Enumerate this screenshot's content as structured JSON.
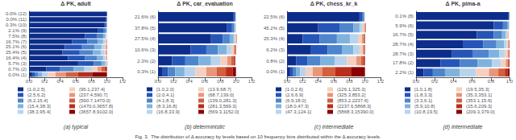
{
  "chart_data": [
    {
      "type": "bar",
      "orientation": "horizontal",
      "stacked": true,
      "title": "Δ PK, adult",
      "subtitle": "(a) typical",
      "annotations": [
        "Fig. 3.  The distribution of Δ accuracy by levels based on 10 frequency bins distributed within the Δ accuracy levels."
      ],
      "categories": [
        "0.0% (12)",
        "0.0% (11)",
        "0.3% (10)",
        "2.1% (9)",
        "7.5% (8)",
        "16.7% (7)",
        "25.1% (6)",
        "25.4% (5)",
        "16.4% (4)",
        "5.7% (3)",
        "0.7% (2)",
        "0.0% (1)"
      ],
      "series": [
        {
          "name": "[1.0,2.5]",
          "color": "#0d2d8a",
          "values": [
            1.0,
            0.99,
            0.97,
            0.88,
            0.72,
            0.55,
            0.46,
            0.43,
            0.5,
            0.63,
            0.22,
            0.04
          ]
        },
        {
          "name": "(2.5,6.2]",
          "color": "#2655b8",
          "values": [
            0.0,
            0.01,
            0.02,
            0.08,
            0.15,
            0.2,
            0.22,
            0.22,
            0.22,
            0.2,
            0.18,
            0.04
          ]
        },
        {
          "name": "(6.2,15.4]",
          "color": "#4e85cc",
          "values": [
            0.0,
            0.0,
            0.01,
            0.03,
            0.08,
            0.13,
            0.16,
            0.17,
            0.15,
            0.1,
            0.17,
            0.04
          ]
        },
        {
          "name": "(15.4,38.3]",
          "color": "#7fb3de",
          "values": [
            0.0,
            0.0,
            0.0,
            0.01,
            0.03,
            0.07,
            0.09,
            0.1,
            0.08,
            0.05,
            0.14,
            0.05
          ]
        },
        {
          "name": "(38.3,95.4]",
          "color": "#b8d4ed",
          "values": [
            0.0,
            0.0,
            0.0,
            0.0,
            0.01,
            0.03,
            0.04,
            0.05,
            0.03,
            0.015,
            0.1,
            0.07
          ]
        },
        {
          "name": "(95.1,237.4]",
          "color": "#f5cfc0",
          "values": [
            0.0,
            0.0,
            0.0,
            0.0,
            0.01,
            0.01,
            0.015,
            0.015,
            0.01,
            0.005,
            0.07,
            0.1
          ]
        },
        {
          "name": "(237.4,590.7]",
          "color": "#e8967a",
          "values": [
            0.0,
            0.0,
            0.0,
            0.0,
            0.0,
            0.005,
            0.008,
            0.007,
            0.005,
            0.002,
            0.05,
            0.13
          ]
        },
        {
          "name": "(590.7,1470.0]",
          "color": "#d45f3c",
          "values": [
            0.0,
            0.0,
            0.0,
            0.0,
            0.0,
            0.003,
            0.004,
            0.004,
            0.003,
            0.001,
            0.04,
            0.16
          ]
        },
        {
          "name": "(1470.0,3657.8]",
          "color": "#ba2d1a",
          "values": [
            0.0,
            0.0,
            0.0,
            0.0,
            0.0,
            0.002,
            0.002,
            0.002,
            0.001,
            0.001,
            0.02,
            0.18
          ]
        },
        {
          "name": "(3657.8,9102.0]",
          "color": "#8b0000",
          "values": [
            0.0,
            0.0,
            0.0,
            0.0,
            0.0,
            0.0,
            0.001,
            0.001,
            0.001,
            0.001,
            0.01,
            0.19
          ]
        }
      ],
      "xlim": [
        0,
        1.2
      ],
      "xticks": [
        {
          "value": 0,
          "label": "0.0"
        },
        0.2,
        0.4,
        0.6,
        0.8,
        {
          "value": 1,
          "label": "1.0"
        },
        1.2
      ],
      "grid": false,
      "legend": "bottom"
    },
    {
      "type": "bar",
      "orientation": "horizontal",
      "stacked": true,
      "title": "Δ PK, car_evaluation",
      "subtitle": "(b) deterministic",
      "categories": [
        "21.6% (6)",
        "37.8% (5)",
        "27.5% (4)",
        "10.6% (3)",
        "2.3% (2)",
        "0.3% (1)"
      ],
      "series": [
        {
          "name": "[1.0,2.0]",
          "color": "#0d2d8a",
          "values": [
            0.97,
            0.88,
            0.68,
            0.42,
            0.18,
            0.06
          ]
        },
        {
          "name": "(2.0,4.1]",
          "color": "#2655b8",
          "values": [
            0.02,
            0.07,
            0.15,
            0.2,
            0.17,
            0.07
          ]
        },
        {
          "name": "(4.1,8.3]",
          "color": "#4e85cc",
          "values": [
            0.005,
            0.03,
            0.09,
            0.15,
            0.17,
            0.09
          ]
        },
        {
          "name": "(8.3,16.8]",
          "color": "#7fb3de",
          "values": [
            0.003,
            0.01,
            0.05,
            0.11,
            0.16,
            0.12
          ]
        },
        {
          "name": "(16.8,33.9]",
          "color": "#b8d4ed",
          "values": [
            0.001,
            0.005,
            0.02,
            0.06,
            0.12,
            0.14
          ]
        },
        {
          "name": "(13.9,68.7]",
          "color": "#f5cfc0",
          "values": [
            0.001,
            0.003,
            0.01,
            0.03,
            0.09,
            0.14
          ]
        },
        {
          "name": "(68.7,139.0]",
          "color": "#e8967a",
          "values": [
            0.0,
            0.001,
            0.005,
            0.015,
            0.05,
            0.13
          ]
        },
        {
          "name": "(139.0,281.3]",
          "color": "#d45f3c",
          "values": [
            0.0,
            0.001,
            0.003,
            0.008,
            0.03,
            0.12
          ]
        },
        {
          "name": "(281.3,569.3]",
          "color": "#ba2d1a",
          "values": [
            0.0,
            0.0,
            0.001,
            0.005,
            0.01,
            0.09
          ]
        },
        {
          "name": "(569.3,1152.0]",
          "color": "#8b0000",
          "values": [
            0.0,
            0.0,
            0.001,
            0.002,
            0.01,
            0.04
          ]
        }
      ],
      "xlim": [
        0,
        1.2
      ],
      "xticks": [
        {
          "value": 0,
          "label": "0.0"
        },
        0.2,
        0.4,
        0.6,
        0.8,
        {
          "value": 1,
          "label": "1.0"
        },
        1.2
      ],
      "grid": false,
      "legend": "bottom"
    },
    {
      "type": "bar",
      "orientation": "horizontal",
      "stacked": true,
      "title": "Δ PK, chess_kr_k",
      "subtitle": "(c) intermediate",
      "categories": [
        "22.5% (6)",
        "45.2% (5)",
        "25.3% (4)",
        "6.2% (3)",
        "0.8% (2)",
        "0.0% (1)"
      ],
      "series": [
        {
          "name": "[1.0,2.6]",
          "color": "#0d2d8a",
          "values": [
            0.93,
            0.4,
            0.2,
            0.3,
            0.12,
            0.04
          ]
        },
        {
          "name": "(2.6,6.9]",
          "color": "#2655b8",
          "values": [
            0.04,
            0.28,
            0.22,
            0.22,
            0.14,
            0.04
          ]
        },
        {
          "name": "(6.9,18.0]",
          "color": "#4e85cc",
          "values": [
            0.02,
            0.17,
            0.22,
            0.19,
            0.17,
            0.04
          ]
        },
        {
          "name": "(18.0,47.3]",
          "color": "#7fb3de",
          "values": [
            0.005,
            0.08,
            0.17,
            0.14,
            0.18,
            0.05
          ]
        },
        {
          "name": "(47.3,124.1]",
          "color": "#b8d4ed",
          "values": [
            0.003,
            0.04,
            0.1,
            0.08,
            0.16,
            0.07
          ]
        },
        {
          "name": "(126.1,325.3]",
          "color": "#f5cfc0",
          "values": [
            0.001,
            0.02,
            0.05,
            0.04,
            0.12,
            0.09
          ]
        },
        {
          "name": "(325.3,853.2]",
          "color": "#e8967a",
          "values": [
            0.001,
            0.01,
            0.02,
            0.015,
            0.06,
            0.12
          ]
        },
        {
          "name": "(853.2,2237.6]",
          "color": "#d45f3c",
          "values": [
            0.0,
            0.005,
            0.01,
            0.008,
            0.03,
            0.17
          ]
        },
        {
          "name": "(2237.6,5868.3]",
          "color": "#ba2d1a",
          "values": [
            0.0,
            0.003,
            0.005,
            0.004,
            0.015,
            0.2
          ]
        },
        {
          "name": "(5868.3,15390.0]",
          "color": "#8b0000",
          "values": [
            0.0,
            0.002,
            0.005,
            0.003,
            0.005,
            0.18
          ]
        }
      ],
      "xlim": [
        0,
        1.2
      ],
      "xticks": [
        {
          "value": 0,
          "label": "0.0"
        },
        0.2,
        0.4,
        0.6,
        0.8,
        {
          "value": 1,
          "label": "1.0"
        },
        1.2
      ],
      "grid": false,
      "legend": "bottom"
    },
    {
      "type": "bar",
      "orientation": "horizontal",
      "stacked": true,
      "title": "Δ PK, pima-a",
      "subtitle": "(d) intermediate",
      "categories": [
        "0.1% (8)",
        "5.9% (6)",
        "16.7% (5)",
        "28.7% (4)",
        "28.7% (3)",
        "17.8% (2)",
        "2.2% (1)"
      ],
      "series": [
        {
          "name": "[1.0,1.8]",
          "color": "#0d2d8a",
          "values": [
            0.99,
            0.83,
            0.65,
            0.5,
            0.38,
            0.26,
            0.08
          ]
        },
        {
          "name": "(1.8,3.3]",
          "color": "#2655b8",
          "values": [
            0.007,
            0.1,
            0.18,
            0.22,
            0.23,
            0.21,
            0.1
          ]
        },
        {
          "name": "(3.3,6.1]",
          "color": "#4e85cc",
          "values": [
            0.002,
            0.05,
            0.09,
            0.14,
            0.17,
            0.19,
            0.13
          ]
        },
        {
          "name": "(5.9,10.8]",
          "color": "#7fb3de",
          "values": [
            0.001,
            0.015,
            0.04,
            0.08,
            0.11,
            0.15,
            0.16
          ]
        },
        {
          "name": "(10.8,19.5]",
          "color": "#b8d4ed",
          "values": [
            0.0,
            0.004,
            0.015,
            0.03,
            0.06,
            0.1,
            0.17
          ]
        },
        {
          "name": "(19.5,35.3]",
          "color": "#f5cfc0",
          "values": [
            0.0,
            0.001,
            0.006,
            0.015,
            0.03,
            0.05,
            0.14
          ]
        },
        {
          "name": "(35.3,353.1]",
          "color": "#e8967a",
          "values": [
            0.0,
            0.0,
            0.003,
            0.007,
            0.01,
            0.02,
            0.1
          ]
        },
        {
          "name": "(353.1,15.6]",
          "color": "#d45f3c",
          "values": [
            0.0,
            0.0,
            0.002,
            0.004,
            0.005,
            0.01,
            0.07
          ]
        },
        {
          "name": "(15.6,209.3]",
          "color": "#ba2d1a",
          "values": [
            0.0,
            0.0,
            0.001,
            0.002,
            0.003,
            0.005,
            0.03
          ]
        },
        {
          "name": "(209.3,379.0]",
          "color": "#8b0000",
          "values": [
            0.0,
            0.0,
            0.0,
            0.002,
            0.002,
            0.005,
            0.02
          ]
        }
      ],
      "xlim": [
        0,
        1.0
      ],
      "xticks": [
        {
          "value": 0,
          "label": "0.0"
        },
        0.2,
        0.4,
        0.6,
        0.8,
        {
          "value": 1,
          "label": "1.0"
        }
      ],
      "grid": false,
      "legend": "bottom"
    }
  ]
}
